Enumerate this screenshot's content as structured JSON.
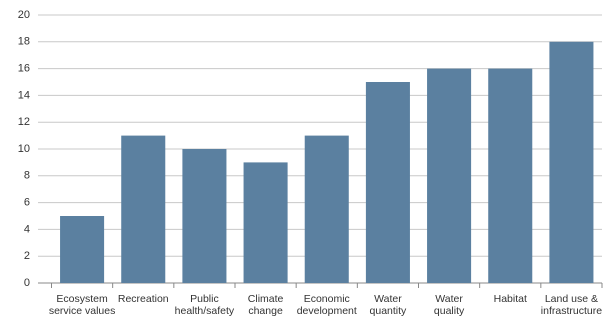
{
  "chart_data": {
    "type": "bar",
    "categories": [
      [
        "Ecosystem",
        "service values"
      ],
      [
        "Recreation"
      ],
      [
        "Public",
        "health/safety"
      ],
      [
        "Climate",
        "change"
      ],
      [
        "Economic",
        "development"
      ],
      [
        "Water",
        "quantity"
      ],
      [
        "Water",
        "quality"
      ],
      [
        "Habitat"
      ],
      [
        "Land use &",
        "infrastructure"
      ]
    ],
    "values": [
      5,
      11,
      10,
      9,
      11,
      15,
      16,
      16,
      18
    ],
    "color": "#5b80a0",
    "ylim": [
      0,
      20
    ],
    "yticks": [
      0,
      2,
      4,
      6,
      8,
      10,
      12,
      14,
      16,
      18,
      20
    ],
    "grid": true
  }
}
